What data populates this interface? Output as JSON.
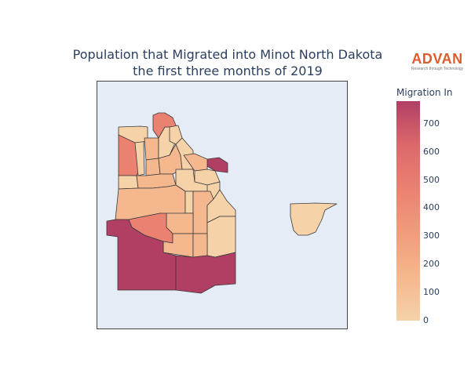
{
  "title": {
    "line1": "Population that Migrated into Minot North Dakota",
    "line2": "the first three months of 2019"
  },
  "logo": {
    "text": "ADVAN",
    "tagline": "Research through Technology",
    "color": "#e05a2b"
  },
  "map": {
    "background_color": "#e5ecf6",
    "border_color": "#444444",
    "region_count": 30
  },
  "colorbar": {
    "title": "Migration In",
    "range": [
      0,
      780
    ],
    "ticks": [
      "0",
      "100",
      "200",
      "300",
      "400",
      "500",
      "600",
      "700"
    ],
    "colorscale": [
      "#f6d2a9",
      "#f5b78e",
      "#f19c7c",
      "#ea8171",
      "#dd686c",
      "#b13f64"
    ]
  }
}
